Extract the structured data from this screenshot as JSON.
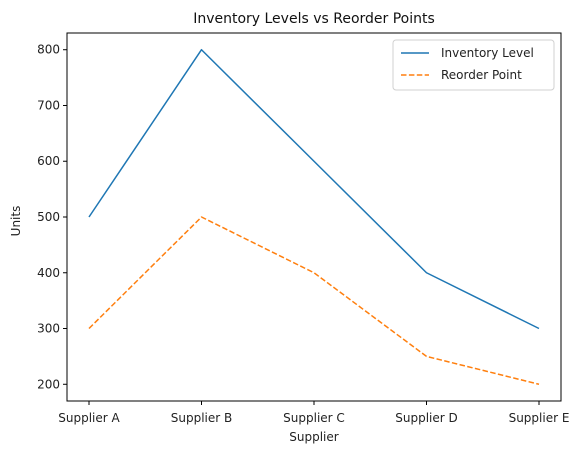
{
  "chart_data": {
    "type": "line",
    "title": "Inventory Levels vs Reorder Points",
    "xlabel": "Supplier",
    "ylabel": "Units",
    "categories": [
      "Supplier A",
      "Supplier B",
      "Supplier C",
      "Supplier D",
      "Supplier E"
    ],
    "series": [
      {
        "name": "Inventory Level",
        "values": [
          500,
          800,
          600,
          400,
          300
        ],
        "color": "#1f77b4",
        "style": "solid"
      },
      {
        "name": "Reorder Point",
        "values": [
          300,
          500,
          400,
          250,
          200
        ],
        "color": "#ff7f0e",
        "style": "dashed"
      }
    ],
    "ylim": [
      170,
      830
    ],
    "yticks": [
      200,
      300,
      400,
      500,
      600,
      700,
      800
    ],
    "grid": false,
    "legend": "top-right"
  }
}
